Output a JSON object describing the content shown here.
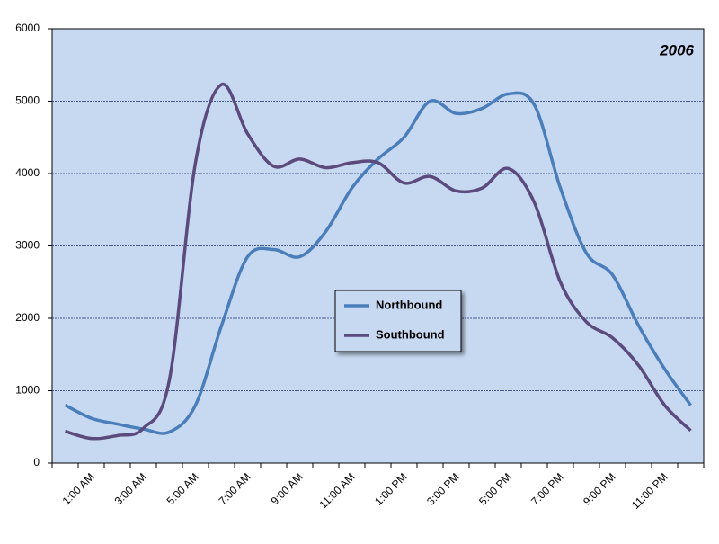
{
  "chart_data": {
    "type": "line",
    "title": "2006",
    "categories": [
      null,
      "1:00 AM",
      null,
      "3:00 AM",
      null,
      "5:00 AM",
      null,
      "7:00 AM",
      null,
      "9:00 AM",
      null,
      "11:00 AM",
      null,
      "1:00 PM",
      null,
      "3:00 PM",
      null,
      "5:00 PM",
      null,
      "7:00 PM",
      null,
      "9:00 PM",
      null,
      "11:00 PM",
      null
    ],
    "series": [
      {
        "name": "Northbound",
        "color": "#4a7ebb",
        "values": [
          800,
          620,
          540,
          470,
          430,
          800,
          1900,
          2850,
          2950,
          2850,
          3200,
          3800,
          4200,
          4500,
          5000,
          4830,
          4900,
          5100,
          4950,
          3800,
          2900,
          2600,
          1900,
          1300,
          800
        ]
      },
      {
        "name": "Southbound",
        "color": "#5c4a7d",
        "values": [
          440,
          340,
          380,
          480,
          1150,
          4150,
          5230,
          4550,
          4100,
          4200,
          4080,
          4150,
          4150,
          3870,
          3960,
          3760,
          3800,
          4070,
          3600,
          2500,
          1950,
          1730,
          1350,
          800,
          450
        ]
      }
    ],
    "ylim": [
      0,
      6000
    ],
    "yticks": [
      0,
      1000,
      2000,
      3000,
      4000,
      5000,
      6000
    ],
    "grid": true,
    "legend": "center"
  }
}
